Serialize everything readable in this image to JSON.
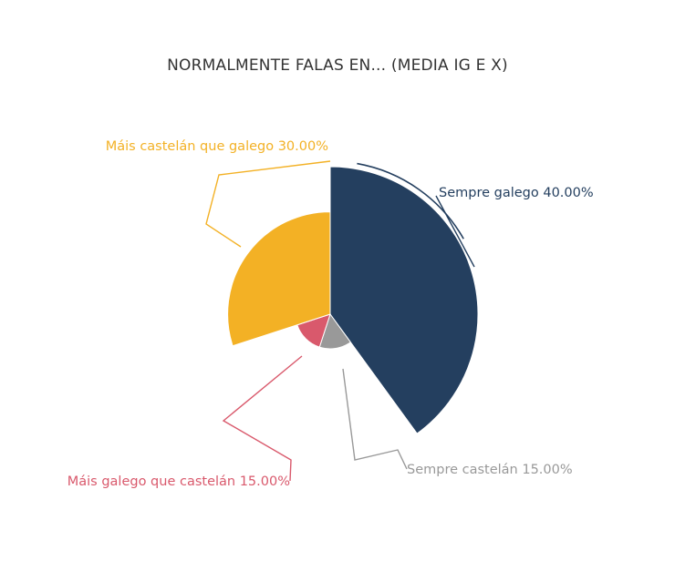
{
  "chart_data": {
    "type": "pie",
    "title": "NORMALMENTE FALAS EN... (MEDIA IG E X)",
    "slices": [
      {
        "label": "Sempre galego",
        "value": 40.0,
        "value_label": "40.00%",
        "color": "#243f5f"
      },
      {
        "label": "Sempre castelán",
        "value": 15.0,
        "value_label": "15.00%",
        "color": "#999999"
      },
      {
        "label": "Máis galego que castelán",
        "value": 15.0,
        "value_label": "15.00%",
        "color": "#d9596c"
      },
      {
        "label": "Máis castelán que galego",
        "value": 30.0,
        "value_label": "30.00%",
        "color": "#f3b125"
      }
    ],
    "legend": "none"
  }
}
